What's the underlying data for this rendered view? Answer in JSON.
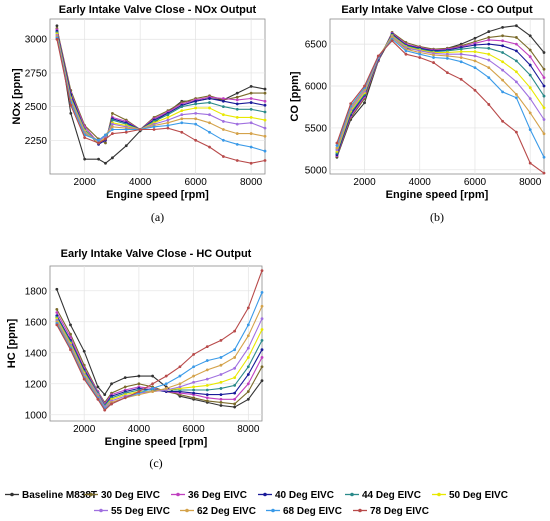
{
  "chart_data": [
    {
      "type": "line",
      "title": "Early Intake Valve Close - NOx Output",
      "xlabel": "Engine speed [rpm]",
      "ylabel": "NOx [ppm]",
      "caption": "(a)",
      "xlim": [
        750,
        8500
      ],
      "ylim": [
        2000,
        3150
      ],
      "xticks": [
        2000,
        4000,
        6000,
        8000
      ],
      "yticks": [
        2250,
        2500,
        2750,
        3000
      ],
      "grid": true,
      "x": [
        1000,
        1500,
        2000,
        2500,
        2750,
        3000,
        3500,
        4000,
        4500,
        5000,
        5500,
        6000,
        6500,
        7000,
        7500,
        8000,
        8500
      ],
      "series": [
        {
          "name": "Baseline M838T",
          "color": "#333333",
          "values": [
            3100,
            2450,
            2110,
            2110,
            2080,
            2120,
            2210,
            2320,
            2380,
            2460,
            2540,
            2540,
            2560,
            2550,
            2600,
            2650,
            2630
          ]
        },
        {
          "name": "30 Deg EIVC",
          "color": "#7a6a2a",
          "values": [
            3080,
            2620,
            2360,
            2260,
            2230,
            2450,
            2400,
            2330,
            2420,
            2470,
            2530,
            2560,
            2580,
            2550,
            2570,
            2600,
            2600
          ]
        },
        {
          "name": "36 Deg EIVC",
          "color": "#c040c0",
          "values": [
            3070,
            2600,
            2350,
            2230,
            2250,
            2420,
            2390,
            2330,
            2410,
            2460,
            2520,
            2550,
            2570,
            2560,
            2550,
            2560,
            2540
          ]
        },
        {
          "name": "40 Deg EIVC",
          "color": "#1a1a99",
          "values": [
            3060,
            2590,
            2330,
            2220,
            2250,
            2410,
            2380,
            2330,
            2400,
            2450,
            2510,
            2540,
            2560,
            2540,
            2520,
            2530,
            2510
          ]
        },
        {
          "name": "44 Deg EIVC",
          "color": "#2a8a8a",
          "values": [
            3050,
            2570,
            2330,
            2230,
            2260,
            2400,
            2370,
            2330,
            2390,
            2440,
            2500,
            2520,
            2530,
            2500,
            2480,
            2480,
            2460
          ]
        },
        {
          "name": "50 Deg EIVC",
          "color": "#e8e800",
          "values": [
            3040,
            2560,
            2320,
            2230,
            2270,
            2380,
            2360,
            2330,
            2380,
            2420,
            2470,
            2490,
            2490,
            2440,
            2420,
            2420,
            2400
          ]
        },
        {
          "name": "55 Deg EIVC",
          "color": "#a070e0",
          "values": [
            3030,
            2550,
            2310,
            2240,
            2280,
            2370,
            2350,
            2330,
            2370,
            2400,
            2440,
            2450,
            2440,
            2390,
            2370,
            2380,
            2340
          ]
        },
        {
          "name": "62 Deg EIVC",
          "color": "#d4a24a",
          "values": [
            3020,
            2540,
            2300,
            2250,
            2290,
            2350,
            2340,
            2330,
            2360,
            2380,
            2410,
            2410,
            2380,
            2330,
            2300,
            2300,
            2280
          ]
        },
        {
          "name": "68 Deg EIVC",
          "color": "#3a9ae8",
          "values": [
            3010,
            2530,
            2290,
            2250,
            2290,
            2330,
            2330,
            2330,
            2350,
            2360,
            2380,
            2370,
            2310,
            2250,
            2220,
            2200,
            2170
          ]
        },
        {
          "name": "78 Deg EIVC",
          "color": "#b84a4a",
          "values": [
            3000,
            2510,
            2270,
            2230,
            2260,
            2300,
            2310,
            2330,
            2330,
            2340,
            2310,
            2250,
            2200,
            2130,
            2100,
            2080,
            2100
          ]
        }
      ]
    },
    {
      "type": "line",
      "title": "Early Intake Valve Close - CO Output",
      "xlabel": "Engine speed [rpm]",
      "ylabel": "CO [ppm]",
      "caption": "(b)",
      "xlim": [
        750,
        8500
      ],
      "ylim": [
        4950,
        6800
      ],
      "xticks": [
        2000,
        4000,
        6000,
        8000
      ],
      "yticks": [
        5000,
        5500,
        6000,
        6500
      ],
      "grid": true,
      "x": [
        1000,
        1500,
        2000,
        2500,
        3000,
        3500,
        4000,
        4500,
        5000,
        5500,
        6000,
        6500,
        7000,
        7500,
        8000,
        8500
      ],
      "series": [
        {
          "name": "Baseline M838T",
          "color": "#333333",
          "values": [
            5150,
            5600,
            5800,
            6300,
            6600,
            6450,
            6430,
            6420,
            6450,
            6500,
            6570,
            6650,
            6700,
            6720,
            6600,
            6400
          ]
        },
        {
          "name": "30 Deg EIVC",
          "color": "#7a6a2a",
          "values": [
            5160,
            5620,
            5850,
            6300,
            6640,
            6520,
            6470,
            6440,
            6450,
            6480,
            6530,
            6580,
            6600,
            6580,
            6430,
            6200
          ]
        },
        {
          "name": "36 Deg EIVC",
          "color": "#c040c0",
          "values": [
            5170,
            5640,
            5870,
            6310,
            6630,
            6500,
            6460,
            6430,
            6440,
            6470,
            6510,
            6550,
            6540,
            6500,
            6350,
            6100
          ]
        },
        {
          "name": "40 Deg EIVC",
          "color": "#1a1a99",
          "values": [
            5180,
            5660,
            5890,
            6320,
            6620,
            6490,
            6450,
            6420,
            6430,
            6460,
            6490,
            6500,
            6480,
            6420,
            6250,
            6000
          ]
        },
        {
          "name": "44 Deg EIVC",
          "color": "#2a8a8a",
          "values": [
            5200,
            5680,
            5900,
            6330,
            6610,
            6480,
            6440,
            6410,
            6420,
            6440,
            6460,
            6450,
            6400,
            6300,
            6130,
            5880
          ]
        },
        {
          "name": "50 Deg EIVC",
          "color": "#e8e800",
          "values": [
            5220,
            5700,
            5920,
            6340,
            6600,
            6470,
            6430,
            6400,
            6400,
            6410,
            6410,
            6380,
            6290,
            6170,
            5980,
            5740
          ]
        },
        {
          "name": "55 Deg EIVC",
          "color": "#a070e0",
          "values": [
            5240,
            5720,
            5940,
            6340,
            6590,
            6460,
            6420,
            6390,
            6380,
            6380,
            6360,
            6310,
            6190,
            6050,
            5850,
            5600
          ]
        },
        {
          "name": "62 Deg EIVC",
          "color": "#d4a24a",
          "values": [
            5260,
            5740,
            5960,
            6350,
            6580,
            6440,
            6400,
            6370,
            6360,
            6340,
            6300,
            6220,
            6070,
            5900,
            5680,
            5430
          ]
        },
        {
          "name": "68 Deg EIVC",
          "color": "#3a9ae8",
          "values": [
            5290,
            5760,
            5980,
            6350,
            6560,
            6420,
            6380,
            6340,
            6330,
            6290,
            6220,
            6100,
            5930,
            5860,
            5480,
            5150
          ]
        },
        {
          "name": "78 Deg EIVC",
          "color": "#b84a4a",
          "values": [
            5320,
            5790,
            6000,
            6360,
            6540,
            6380,
            6340,
            6280,
            6160,
            6080,
            5950,
            5780,
            5580,
            5450,
            5080,
            4960
          ]
        }
      ]
    },
    {
      "type": "line",
      "title": "Early Intake Valve Close - HC Output",
      "xlabel": "Engine speed [rpm]",
      "ylabel": "HC [ppm]",
      "caption": "(c)",
      "xlim": [
        750,
        8500
      ],
      "ylim": [
        960,
        1960
      ],
      "xticks": [
        2000,
        4000,
        6000,
        8000
      ],
      "yticks": [
        1000,
        1200,
        1400,
        1600,
        1800
      ],
      "grid": true,
      "x": [
        1000,
        1500,
        2000,
        2500,
        2750,
        3000,
        3500,
        4000,
        4500,
        5000,
        5500,
        6000,
        6500,
        7000,
        7500,
        8000,
        8500
      ],
      "series": [
        {
          "name": "Baseline M838T",
          "color": "#333333",
          "values": [
            1810,
            1580,
            1410,
            1180,
            1130,
            1200,
            1240,
            1250,
            1250,
            1180,
            1120,
            1100,
            1080,
            1060,
            1050,
            1100,
            1220
          ]
        },
        {
          "name": "30 Deg EIVC",
          "color": "#7a6a2a",
          "values": [
            1680,
            1520,
            1320,
            1150,
            1080,
            1140,
            1180,
            1200,
            1180,
            1150,
            1130,
            1110,
            1090,
            1080,
            1070,
            1150,
            1310
          ]
        },
        {
          "name": "36 Deg EIVC",
          "color": "#c040c0",
          "values": [
            1660,
            1500,
            1300,
            1150,
            1070,
            1130,
            1160,
            1180,
            1170,
            1150,
            1140,
            1130,
            1110,
            1100,
            1100,
            1200,
            1370
          ]
        },
        {
          "name": "40 Deg EIVC",
          "color": "#1a1a99",
          "values": [
            1640,
            1480,
            1290,
            1140,
            1060,
            1120,
            1150,
            1170,
            1160,
            1150,
            1150,
            1140,
            1130,
            1130,
            1140,
            1260,
            1420
          ]
        },
        {
          "name": "44 Deg EIVC",
          "color": "#2a8a8a",
          "values": [
            1630,
            1470,
            1280,
            1140,
            1060,
            1110,
            1140,
            1160,
            1160,
            1160,
            1160,
            1160,
            1160,
            1170,
            1190,
            1310,
            1480
          ]
        },
        {
          "name": "50 Deg EIVC",
          "color": "#e8e800",
          "values": [
            1620,
            1460,
            1270,
            1130,
            1050,
            1100,
            1130,
            1150,
            1150,
            1160,
            1170,
            1180,
            1190,
            1210,
            1240,
            1370,
            1550
          ]
        },
        {
          "name": "55 Deg EIVC",
          "color": "#a070e0",
          "values": [
            1610,
            1450,
            1260,
            1130,
            1050,
            1090,
            1120,
            1140,
            1150,
            1160,
            1180,
            1210,
            1230,
            1260,
            1300,
            1430,
            1620
          ]
        },
        {
          "name": "62 Deg EIVC",
          "color": "#d4a24a",
          "values": [
            1600,
            1440,
            1250,
            1120,
            1040,
            1080,
            1110,
            1130,
            1150,
            1170,
            1200,
            1250,
            1290,
            1320,
            1370,
            1510,
            1700
          ]
        },
        {
          "name": "68 Deg EIVC",
          "color": "#3a9ae8",
          "values": [
            1590,
            1430,
            1240,
            1110,
            1040,
            1070,
            1110,
            1140,
            1170,
            1200,
            1250,
            1310,
            1350,
            1370,
            1420,
            1580,
            1790
          ]
        },
        {
          "name": "78 Deg EIVC",
          "color": "#b84a4a",
          "values": [
            1580,
            1420,
            1230,
            1100,
            1030,
            1070,
            1110,
            1150,
            1200,
            1250,
            1310,
            1390,
            1440,
            1480,
            1540,
            1690,
            1930
          ]
        }
      ]
    }
  ],
  "legend": {
    "placement": "bottom",
    "entries": [
      "Baseline M838T",
      "30 Deg EIVC",
      "36 Deg EIVC",
      "40 Deg EIVC",
      "44 Deg EIVC",
      "50 Deg EIVC",
      "55 Deg EIVC",
      "62 Deg EIVC",
      "68 Deg EIVC",
      "78 Deg EIVC"
    ]
  }
}
